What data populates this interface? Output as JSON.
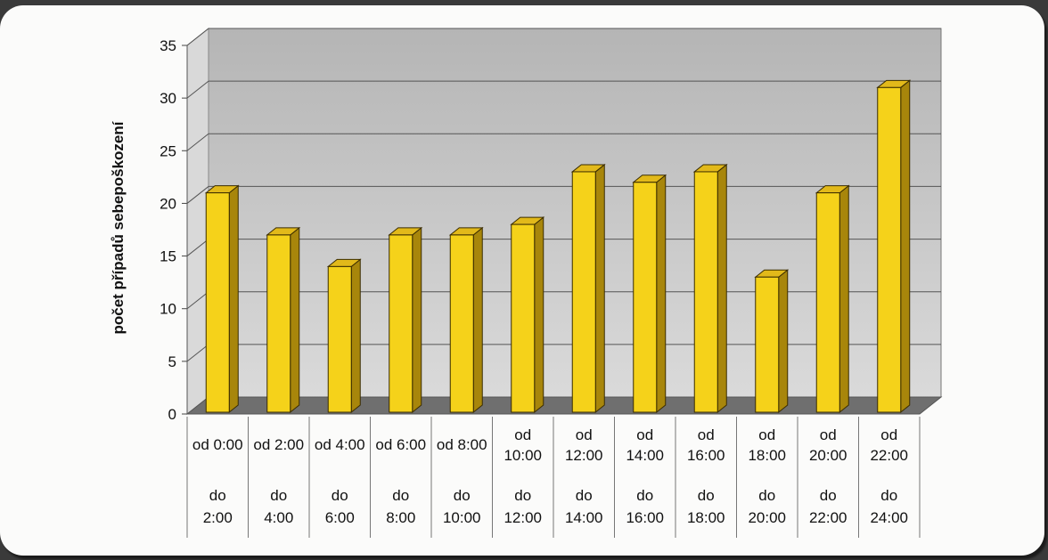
{
  "chart_data": {
    "type": "bar",
    "ylabel": "počet případů sebepoškození",
    "xlabel": "",
    "ylim": [
      0,
      35
    ],
    "yticks": [
      "0",
      "5",
      "10",
      "15",
      "20",
      "25",
      "30",
      "35"
    ],
    "categories": [
      {
        "from": "od 0:00",
        "to": "do 2:00"
      },
      {
        "from": "od 2:00",
        "to": "do 4:00"
      },
      {
        "from": "od 4:00",
        "to": "do 6:00"
      },
      {
        "from": "od 6:00",
        "to": "do 8:00"
      },
      {
        "from": "od 8:00",
        "to": "do 10:00"
      },
      {
        "from": "od 10:00",
        "to": "do 12:00"
      },
      {
        "from": "od 12:00",
        "to": "do 14:00"
      },
      {
        "from": "od 14:00",
        "to": "do 16:00"
      },
      {
        "from": "od 16:00",
        "to": "do 18:00"
      },
      {
        "from": "od 18:00",
        "to": "do 20:00"
      },
      {
        "from": "od 20:00",
        "to": "do 22:00"
      },
      {
        "from": "od 22:00",
        "to": "do 24:00"
      }
    ],
    "values": [
      21,
      17,
      14,
      17,
      17,
      18,
      23,
      22,
      23,
      13,
      21,
      31
    ],
    "grid": true,
    "style": "3d-bar",
    "colors": {
      "bar_front": "#f5d21a",
      "bar_side": "#a8860b",
      "bar_top": "#e2b91a",
      "wall": "#c9c9c9",
      "floor": "#6f6f6f"
    }
  }
}
